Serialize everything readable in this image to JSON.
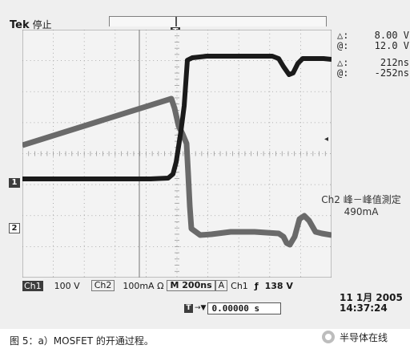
{
  "scope": {
    "brand": "Tek",
    "run_state": "停止",
    "trigger_marker": "T",
    "cursors": {
      "delta_v": {
        "symbol": "△:",
        "value": "8.00 V"
      },
      "at_v": {
        "symbol": "@:",
        "value": "12.0 V"
      },
      "delta_t": {
        "symbol": "△:",
        "value": "212ns"
      },
      "at_t": {
        "symbol": "@:",
        "value": "-252ns"
      }
    },
    "channel_markers": {
      "ch1": "1",
      "ch2": "2"
    },
    "trigger_level_icon": "triangle-left-icon",
    "measurement": {
      "label": "Ch2 峰－峰值測定",
      "value": "490mA"
    },
    "status": {
      "ch1_label": "Ch1",
      "ch1_scale": "100 V",
      "ch2_label": "Ch2",
      "ch2_scale": "100mA Ω",
      "timebase_prefix": "M",
      "timebase": "200ns",
      "trigger_mode": "A",
      "trigger_source": "Ch1",
      "trigger_slope": "ƒ",
      "trigger_level": "138 V"
    },
    "position": {
      "icon": "T",
      "arrow": "→▼",
      "value": "0.00000 s"
    },
    "datetime": {
      "date": "11 1月  2005",
      "time": "14:37:24"
    },
    "colors": {
      "background": "#efefef",
      "grid": "#9a9a9a",
      "trace_ch1": "#1a1a1a",
      "trace_ch2": "#6a6a6a"
    }
  },
  "caption": "图 5：a）MOSFET 的开通过程。",
  "watermark": "半导体在线"
}
